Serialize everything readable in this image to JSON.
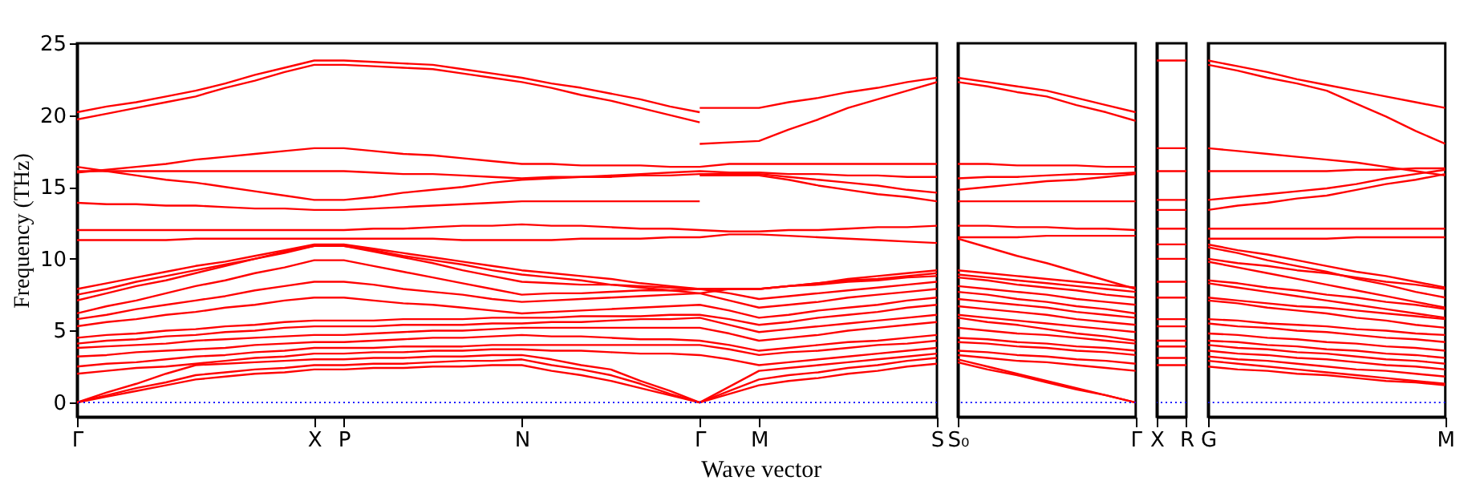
{
  "chart_data": [
    {
      "type": "line",
      "ylabel": "Frequency (THz)",
      "xlabel": "Wave vector",
      "ylim": [
        -1,
        25
      ],
      "yticks": [
        0,
        5,
        10,
        15,
        20,
        25
      ],
      "categories": [
        "Γ",
        null,
        null,
        null,
        null,
        null,
        null,
        null,
        "X",
        "P",
        null,
        null,
        null,
        null,
        null,
        "N",
        null,
        null,
        null,
        null,
        null,
        "Γ",
        null,
        "M",
        null,
        null,
        null,
        null,
        null,
        "S"
      ],
      "ref_lines": [
        {
          "axis": "y",
          "value": 0,
          "color": "#0000ff",
          "line_style": "dotted"
        }
      ],
      "series": [
        {
          "color": "#ff0000",
          "values": [
            20.2,
            20.6,
            20.9,
            21.3,
            21.7,
            22.2,
            22.8,
            23.3,
            23.8,
            23.8,
            23.7,
            23.6,
            23.5,
            23.2,
            22.9,
            22.6,
            22.2,
            21.9,
            21.5,
            21.1,
            20.6,
            20.2,
            null,
            null,
            null,
            null,
            null,
            null,
            null,
            null
          ]
        },
        {
          "color": "#ff0000",
          "values": [
            19.7,
            20.1,
            20.5,
            20.9,
            21.3,
            21.9,
            22.4,
            23.0,
            23.5,
            23.5,
            23.4,
            23.3,
            23.2,
            22.9,
            22.6,
            22.3,
            21.9,
            21.4,
            21.0,
            20.5,
            20.0,
            19.5,
            null,
            null,
            null,
            null,
            null,
            null,
            null,
            null
          ]
        },
        {
          "color": "#ff0000",
          "values": [
            null,
            null,
            null,
            null,
            null,
            null,
            null,
            null,
            null,
            null,
            null,
            null,
            null,
            null,
            null,
            null,
            null,
            null,
            null,
            null,
            null,
            20.5,
            20.5,
            20.5,
            20.9,
            21.2,
            21.6,
            21.9,
            22.3,
            22.6
          ]
        },
        {
          "color": "#ff0000",
          "values": [
            null,
            null,
            null,
            null,
            null,
            null,
            null,
            null,
            null,
            null,
            null,
            null,
            null,
            null,
            null,
            null,
            null,
            null,
            null,
            null,
            null,
            18.0,
            18.1,
            18.2,
            19.0,
            19.7,
            20.5,
            21.1,
            21.7,
            22.3
          ]
        },
        {
          "color": "#ff0000",
          "values": [
            16.0,
            16.2,
            16.4,
            16.6,
            16.9,
            17.1,
            17.3,
            17.5,
            17.7,
            17.7,
            17.5,
            17.3,
            17.2,
            17.0,
            16.8,
            16.6,
            16.6,
            16.5,
            16.5,
            16.5,
            16.4,
            16.4,
            16.6,
            16.6,
            16.6,
            16.6,
            16.6,
            16.6,
            16.6,
            16.6
          ]
        },
        {
          "color": "#ff0000",
          "values": [
            16.4,
            16.1,
            15.8,
            15.5,
            15.3,
            15.0,
            14.7,
            14.4,
            14.1,
            14.1,
            14.3,
            14.6,
            14.8,
            15.0,
            15.3,
            15.5,
            15.6,
            15.7,
            15.8,
            15.9,
            16.0,
            16.1,
            16.0,
            16.0,
            15.9,
            15.9,
            15.8,
            15.8,
            15.7,
            15.7
          ]
        },
        {
          "color": "#ff0000",
          "values": [
            16.1,
            16.1,
            16.1,
            16.1,
            16.1,
            16.1,
            16.1,
            16.1,
            16.1,
            16.1,
            16.0,
            15.9,
            15.9,
            15.8,
            15.7,
            15.6,
            15.7,
            15.7,
            15.7,
            15.8,
            15.8,
            15.9,
            15.9,
            15.9,
            15.7,
            15.5,
            15.3,
            15.1,
            14.8,
            14.6
          ]
        },
        {
          "color": "#ff0000",
          "values": [
            null,
            null,
            null,
            null,
            null,
            null,
            null,
            null,
            null,
            null,
            null,
            null,
            null,
            null,
            null,
            null,
            null,
            null,
            null,
            null,
            null,
            15.8,
            15.8,
            15.8,
            15.5,
            15.1,
            14.8,
            14.5,
            14.3,
            14.0
          ]
        },
        {
          "color": "#ff0000",
          "values": [
            13.9,
            13.8,
            13.8,
            13.7,
            13.7,
            13.6,
            13.5,
            13.5,
            13.4,
            13.4,
            13.5,
            13.6,
            13.7,
            13.8,
            13.9,
            14.0,
            14.0,
            14.0,
            14.0,
            14.0,
            14.0,
            14.0,
            null,
            null,
            null,
            null,
            null,
            null,
            null,
            null
          ]
        },
        {
          "color": "#ff0000",
          "values": [
            12.0,
            12.0,
            12.0,
            12.0,
            12.0,
            12.0,
            12.0,
            12.0,
            12.0,
            12.0,
            12.1,
            12.1,
            12.2,
            12.3,
            12.3,
            12.4,
            12.3,
            12.3,
            12.2,
            12.1,
            12.1,
            12.0,
            11.9,
            11.9,
            12.0,
            12.0,
            12.1,
            12.2,
            12.2,
            12.3
          ]
        },
        {
          "color": "#ff0000",
          "values": [
            11.3,
            11.3,
            11.3,
            11.3,
            11.4,
            11.4,
            11.4,
            11.4,
            11.4,
            11.4,
            11.4,
            11.4,
            11.4,
            11.3,
            11.3,
            11.3,
            11.3,
            11.4,
            11.4,
            11.4,
            11.5,
            11.5,
            11.7,
            11.7,
            11.6,
            11.5,
            11.4,
            11.3,
            11.2,
            11.1
          ]
        },
        {
          "color": "#ff0000",
          "values": [
            0,
            0.4,
            0.8,
            1.2,
            1.6,
            1.8,
            2.0,
            2.1,
            2.3,
            2.3,
            2.4,
            2.4,
            2.5,
            2.5,
            2.6,
            2.6,
            2.2,
            1.9,
            1.5,
            1.0,
            0.5,
            0,
            0.6,
            1.2,
            1.5,
            1.7,
            2.0,
            2.2,
            2.5,
            2.7
          ]
        },
        {
          "color": "#ff0000",
          "values": [
            0,
            0.5,
            1.0,
            1.4,
            1.9,
            2.1,
            2.3,
            2.4,
            2.6,
            2.6,
            2.7,
            2.7,
            2.8,
            2.9,
            2.9,
            3.0,
            2.6,
            2.3,
            1.9,
            1.3,
            0.6,
            0,
            0.8,
            1.6,
            1.9,
            2.1,
            2.4,
            2.6,
            2.9,
            3.1
          ]
        },
        {
          "color": "#ff0000",
          "values": [
            0,
            0.7,
            1.3,
            2.0,
            2.6,
            2.7,
            2.8,
            2.9,
            3.0,
            3.0,
            3.1,
            3.1,
            3.2,
            3.2,
            3.3,
            3.3,
            3.0,
            2.6,
            2.3,
            1.5,
            0.8,
            0,
            1.1,
            2.2,
            2.4,
            2.6,
            2.8,
            3.0,
            3.2,
            3.4
          ]
        },
        {
          "color": "#ff0000",
          "values": [
            2.0,
            2.2,
            2.4,
            2.5,
            2.7,
            2.9,
            3.1,
            3.2,
            3.4,
            3.4,
            3.5,
            3.5,
            3.6,
            3.6,
            3.7,
            3.7,
            3.6,
            3.6,
            3.5,
            3.4,
            3.4,
            3.3,
            3.0,
            2.6,
            2.8,
            3.0,
            3.2,
            3.4,
            3.6,
            3.8
          ]
        },
        {
          "color": "#ff0000",
          "values": [
            2.5,
            2.7,
            2.8,
            3.0,
            3.2,
            3.3,
            3.5,
            3.6,
            3.8,
            3.8,
            3.8,
            3.9,
            3.9,
            3.9,
            4.0,
            4.0,
            4.0,
            4.0,
            4.0,
            4.0,
            4.0,
            4.0,
            3.7,
            3.3,
            3.5,
            3.6,
            3.8,
            4.0,
            4.1,
            4.3
          ]
        },
        {
          "color": "#ff0000",
          "values": [
            3.2,
            3.3,
            3.5,
            3.6,
            3.7,
            3.8,
            4.0,
            4.1,
            4.2,
            4.2,
            4.3,
            4.4,
            4.5,
            4.5,
            4.6,
            4.7,
            4.6,
            4.6,
            4.5,
            4.4,
            4.4,
            4.3,
            4.0,
            3.6,
            3.8,
            4.0,
            4.2,
            4.3,
            4.5,
            4.7
          ]
        },
        {
          "color": "#ff0000",
          "values": [
            3.8,
            3.9,
            4.0,
            4.1,
            4.3,
            4.4,
            4.5,
            4.6,
            4.7,
            4.7,
            4.8,
            4.9,
            5.0,
            5.0,
            5.1,
            5.2,
            5.2,
            5.2,
            5.2,
            5.2,
            5.2,
            5.2,
            4.8,
            4.3,
            4.5,
            4.7,
            5.0,
            5.2,
            5.4,
            5.6
          ]
        },
        {
          "color": "#ff0000",
          "values": [
            4.1,
            4.3,
            4.4,
            4.6,
            4.7,
            4.9,
            5.0,
            5.2,
            5.3,
            5.3,
            5.3,
            5.4,
            5.4,
            5.4,
            5.5,
            5.5,
            5.6,
            5.6,
            5.7,
            5.8,
            5.8,
            5.9,
            5.4,
            4.9,
            5.1,
            5.3,
            5.5,
            5.7,
            5.9,
            6.1
          ]
        },
        {
          "color": "#ff0000",
          "values": [
            4.5,
            4.7,
            4.8,
            5.0,
            5.1,
            5.3,
            5.4,
            5.6,
            5.7,
            5.7,
            5.7,
            5.8,
            5.8,
            5.8,
            5.9,
            5.9,
            5.9,
            6.0,
            6.0,
            6.0,
            6.1,
            6.1,
            5.8,
            5.4,
            5.6,
            5.9,
            6.1,
            6.3,
            6.6,
            6.8
          ]
        },
        {
          "color": "#ff0000",
          "values": [
            5.3,
            5.6,
            5.8,
            6.1,
            6.3,
            6.6,
            6.8,
            7.1,
            7.3,
            7.3,
            7.1,
            6.9,
            6.8,
            6.6,
            6.4,
            6.2,
            6.3,
            6.4,
            6.5,
            6.6,
            6.7,
            6.8,
            6.4,
            5.9,
            6.1,
            6.4,
            6.6,
            6.8,
            7.1,
            7.3
          ]
        },
        {
          "color": "#ff0000",
          "values": [
            5.8,
            6.1,
            6.5,
            6.8,
            7.1,
            7.4,
            7.8,
            8.1,
            8.4,
            8.4,
            8.2,
            7.9,
            7.7,
            7.5,
            7.2,
            7.0,
            7.1,
            7.2,
            7.3,
            7.4,
            7.5,
            7.6,
            7.1,
            6.6,
            6.8,
            7.0,
            7.3,
            7.5,
            7.7,
            7.9
          ]
        },
        {
          "color": "#ff0000",
          "values": [
            6.2,
            6.7,
            7.1,
            7.6,
            8.1,
            8.5,
            9.0,
            9.4,
            9.9,
            9.9,
            9.5,
            9.1,
            8.7,
            8.3,
            7.9,
            7.5,
            7.6,
            7.6,
            7.7,
            7.8,
            7.8,
            7.9,
            7.6,
            7.2,
            7.4,
            7.6,
            7.8,
            8.0,
            8.2,
            8.4
          ]
        },
        {
          "color": "#ff0000",
          "values": [
            7.1,
            7.6,
            8.1,
            8.5,
            9.0,
            9.5,
            10.0,
            10.4,
            10.9,
            10.9,
            10.5,
            10.1,
            9.7,
            9.2,
            8.8,
            8.4,
            8.3,
            8.2,
            8.2,
            8.1,
            8.0,
            7.9,
            7.9,
            7.9,
            8.1,
            8.2,
            8.4,
            8.5,
            8.7,
            8.8
          ]
        },
        {
          "color": "#ff0000",
          "values": [
            7.5,
            7.9,
            8.4,
            8.8,
            9.2,
            9.6,
            10.0,
            10.5,
            10.9,
            10.9,
            10.6,
            10.2,
            9.9,
            9.6,
            9.2,
            8.9,
            8.7,
            8.5,
            8.2,
            8.0,
            7.8,
            7.6,
            7.9,
            7.9,
            8.1,
            8.3,
            8.5,
            8.6,
            8.8,
            9.0
          ]
        },
        {
          "color": "#ff0000",
          "values": [
            7.9,
            8.3,
            8.7,
            9.1,
            9.5,
            9.8,
            10.2,
            10.6,
            11.0,
            11.0,
            10.7,
            10.4,
            10.1,
            9.8,
            9.5,
            9.2,
            9.0,
            8.8,
            8.6,
            8.3,
            8.1,
            7.9,
            7.9,
            7.9,
            8.1,
            8.3,
            8.6,
            8.8,
            9.0,
            9.2
          ]
        }
      ]
    },
    {
      "type": "line",
      "tick_labels": "x",
      "ylim": [
        -1,
        25
      ],
      "yticks": [
        0,
        5,
        10,
        15,
        20,
        25
      ],
      "categories": [
        "S₀",
        null,
        null,
        null,
        null,
        null,
        "Γ"
      ],
      "ref_lines": [
        {
          "axis": "y",
          "value": 0,
          "color": "#0000ff",
          "line_style": "dotted"
        }
      ],
      "series": [
        {
          "color": "#ff0000",
          "values": [
            22.6,
            22.3,
            22.0,
            21.7,
            21.2,
            20.7,
            20.2
          ]
        },
        {
          "color": "#ff0000",
          "values": [
            22.3,
            22.0,
            21.6,
            21.3,
            20.7,
            20.2,
            19.6
          ]
        },
        {
          "color": "#ff0000",
          "values": [
            16.6,
            16.6,
            16.5,
            16.5,
            16.5,
            16.4,
            16.4
          ]
        },
        {
          "color": "#ff0000",
          "values": [
            15.6,
            15.7,
            15.7,
            15.8,
            15.9,
            15.9,
            16.0
          ]
        },
        {
          "color": "#ff0000",
          "values": [
            14.8,
            15.0,
            15.2,
            15.4,
            15.5,
            15.7,
            15.9
          ]
        },
        {
          "color": "#ff0000",
          "values": [
            14.0,
            14.0,
            14.0,
            14.0,
            14.0,
            14.0,
            14.0
          ]
        },
        {
          "color": "#ff0000",
          "values": [
            12.3,
            12.3,
            12.2,
            12.2,
            12.1,
            12.1,
            12.0
          ]
        },
        {
          "color": "#ff0000",
          "values": [
            11.5,
            11.5,
            11.5,
            11.6,
            11.6,
            11.6,
            11.6
          ]
        },
        {
          "color": "#ff0000",
          "values": [
            2.8,
            2.3,
            1.9,
            1.4,
            0.9,
            0.5,
            0
          ]
        },
        {
          "color": "#ff0000",
          "values": [
            3.0,
            2.5,
            2.0,
            1.5,
            1.0,
            0.5,
            0
          ]
        },
        {
          "color": "#ff0000",
          "values": [
            3.3,
            3.1,
            2.9,
            2.8,
            2.6,
            2.4,
            2.2
          ]
        },
        {
          "color": "#ff0000",
          "values": [
            3.6,
            3.5,
            3.3,
            3.2,
            3.0,
            2.9,
            2.7
          ]
        },
        {
          "color": "#ff0000",
          "values": [
            4.2,
            4.1,
            3.9,
            3.8,
            3.6,
            3.5,
            3.3
          ]
        },
        {
          "color": "#ff0000",
          "values": [
            4.5,
            4.4,
            4.2,
            4.1,
            3.9,
            3.8,
            3.6
          ]
        },
        {
          "color": "#ff0000",
          "values": [
            5.2,
            5.0,
            4.8,
            4.7,
            4.5,
            4.3,
            4.1
          ]
        },
        {
          "color": "#ff0000",
          "values": [
            5.9,
            5.6,
            5.4,
            5.1,
            4.8,
            4.6,
            4.3
          ]
        },
        {
          "color": "#ff0000",
          "values": [
            6.1,
            5.9,
            5.7,
            5.5,
            5.3,
            5.1,
            4.9
          ]
        },
        {
          "color": "#ff0000",
          "values": [
            6.7,
            6.5,
            6.3,
            6.1,
            5.8,
            5.6,
            5.4
          ]
        },
        {
          "color": "#ff0000",
          "values": [
            7.2,
            7.0,
            6.8,
            6.6,
            6.3,
            6.1,
            5.9
          ]
        },
        {
          "color": "#ff0000",
          "values": [
            7.7,
            7.5,
            7.2,
            7.0,
            6.7,
            6.5,
            6.2
          ]
        },
        {
          "color": "#ff0000",
          "values": [
            8.1,
            7.9,
            7.7,
            7.5,
            7.2,
            7.0,
            6.8
          ]
        },
        {
          "color": "#ff0000",
          "values": [
            8.7,
            8.5,
            8.2,
            8.0,
            7.8,
            7.5,
            7.3
          ]
        },
        {
          "color": "#ff0000",
          "values": [
            8.9,
            8.7,
            8.5,
            8.3,
            8.1,
            7.9,
            7.7
          ]
        },
        {
          "color": "#ff0000",
          "values": [
            9.2,
            9.0,
            8.8,
            8.6,
            8.4,
            8.2,
            8.0
          ]
        },
        {
          "color": "#ff0000",
          "values": [
            11.4,
            10.8,
            10.2,
            9.7,
            9.1,
            8.5,
            7.9
          ]
        }
      ]
    },
    {
      "type": "line",
      "tick_labels": "x",
      "ylim": [
        -1,
        25
      ],
      "yticks": [
        0,
        5,
        10,
        15,
        20,
        25
      ],
      "categories": [
        "X",
        "R"
      ],
      "ref_lines": [
        {
          "axis": "y",
          "value": 0,
          "color": "#0000ff",
          "line_style": "dotted"
        }
      ],
      "series": [
        {
          "color": "#ff0000",
          "values": [
            23.8,
            23.8
          ]
        },
        {
          "color": "#ff0000",
          "values": [
            17.7,
            17.7
          ]
        },
        {
          "color": "#ff0000",
          "values": [
            16.1,
            16.1
          ]
        },
        {
          "color": "#ff0000",
          "values": [
            14.1,
            14.1
          ]
        },
        {
          "color": "#ff0000",
          "values": [
            13.4,
            13.4
          ]
        },
        {
          "color": "#ff0000",
          "values": [
            12.1,
            12.1
          ]
        },
        {
          "color": "#ff0000",
          "values": [
            11.0,
            11.0
          ]
        },
        {
          "color": "#ff0000",
          "values": [
            10.0,
            10.0
          ]
        },
        {
          "color": "#ff0000",
          "values": [
            8.4,
            8.4
          ]
        },
        {
          "color": "#ff0000",
          "values": [
            7.3,
            7.3
          ]
        },
        {
          "color": "#ff0000",
          "values": [
            5.8,
            5.8
          ]
        },
        {
          "color": "#ff0000",
          "values": [
            5.3,
            5.3
          ]
        },
        {
          "color": "#ff0000",
          "values": [
            4.3,
            4.3
          ]
        },
        {
          "color": "#ff0000",
          "values": [
            3.9,
            3.9
          ]
        },
        {
          "color": "#ff0000",
          "values": [
            3.1,
            3.1
          ]
        },
        {
          "color": "#ff0000",
          "values": [
            2.6,
            2.6
          ]
        }
      ]
    },
    {
      "type": "line",
      "tick_labels": "x",
      "ylim": [
        -1,
        25
      ],
      "yticks": [
        0,
        5,
        10,
        15,
        20,
        25
      ],
      "categories": [
        "G",
        null,
        null,
        null,
        null,
        null,
        null,
        null,
        "M"
      ],
      "ref_lines": [
        {
          "axis": "y",
          "value": 0,
          "color": "#0000ff",
          "line_style": "dotted"
        }
      ],
      "series": [
        {
          "color": "#ff0000",
          "values": [
            23.8,
            23.4,
            23.0,
            22.5,
            22.1,
            21.7,
            21.3,
            20.9,
            20.5
          ]
        },
        {
          "color": "#ff0000",
          "values": [
            23.5,
            23.1,
            22.6,
            22.2,
            21.7,
            20.8,
            19.9,
            18.9,
            18.0
          ]
        },
        {
          "color": "#ff0000",
          "values": [
            17.7,
            17.5,
            17.3,
            17.1,
            16.9,
            16.7,
            16.4,
            16.1,
            15.8
          ]
        },
        {
          "color": "#ff0000",
          "values": [
            16.1,
            16.1,
            16.1,
            16.1,
            16.1,
            16.2,
            16.2,
            16.3,
            16.3
          ]
        },
        {
          "color": "#ff0000",
          "values": [
            14.1,
            14.3,
            14.5,
            14.7,
            14.9,
            15.2,
            15.6,
            15.9,
            16.2
          ]
        },
        {
          "color": "#ff0000",
          "values": [
            13.4,
            13.7,
            13.9,
            14.2,
            14.4,
            14.8,
            15.2,
            15.5,
            15.9
          ]
        },
        {
          "color": "#ff0000",
          "values": [
            12.1,
            12.1,
            12.1,
            12.1,
            12.1,
            12.1,
            12.1,
            12.1,
            12.1
          ]
        },
        {
          "color": "#ff0000",
          "values": [
            11.4,
            11.4,
            11.4,
            11.4,
            11.4,
            11.5,
            11.5,
            11.5,
            11.5
          ]
        },
        {
          "color": "#ff0000",
          "values": [
            2.5,
            2.3,
            2.2,
            2.0,
            1.9,
            1.7,
            1.5,
            1.4,
            1.2
          ]
        },
        {
          "color": "#ff0000",
          "values": [
            2.9,
            2.7,
            2.5,
            2.3,
            2.1,
            1.9,
            1.7,
            1.5,
            1.3
          ]
        },
        {
          "color": "#ff0000",
          "values": [
            3.2,
            3.0,
            2.9,
            2.7,
            2.5,
            2.3,
            2.2,
            2.0,
            1.8
          ]
        },
        {
          "color": "#ff0000",
          "values": [
            3.6,
            3.4,
            3.3,
            3.1,
            3.0,
            2.8,
            2.6,
            2.5,
            2.3
          ]
        },
        {
          "color": "#ff0000",
          "values": [
            4.0,
            3.8,
            3.7,
            3.5,
            3.4,
            3.2,
            3.0,
            2.9,
            2.7
          ]
        },
        {
          "color": "#ff0000",
          "values": [
            4.3,
            4.2,
            4.0,
            3.9,
            3.7,
            3.6,
            3.4,
            3.3,
            3.1
          ]
        },
        {
          "color": "#ff0000",
          "values": [
            4.8,
            4.7,
            4.5,
            4.4,
            4.2,
            4.1,
            3.9,
            3.8,
            3.6
          ]
        },
        {
          "color": "#ff0000",
          "values": [
            5.5,
            5.3,
            5.2,
            5.0,
            4.9,
            4.7,
            4.5,
            4.4,
            4.2
          ]
        },
        {
          "color": "#ff0000",
          "values": [
            5.8,
            5.7,
            5.5,
            5.4,
            5.3,
            5.1,
            5.0,
            4.8,
            4.7
          ]
        },
        {
          "color": "#ff0000",
          "values": [
            7.1,
            6.9,
            6.6,
            6.4,
            6.2,
            5.9,
            5.7,
            5.4,
            5.2
          ]
        },
        {
          "color": "#ff0000",
          "values": [
            7.3,
            7.1,
            6.9,
            6.7,
            6.6,
            6.4,
            6.2,
            6.0,
            5.8
          ]
        },
        {
          "color": "#ff0000",
          "values": [
            8.3,
            8.0,
            7.7,
            7.4,
            7.1,
            6.8,
            6.5,
            6.2,
            5.9
          ]
        },
        {
          "color": "#ff0000",
          "values": [
            8.5,
            8.3,
            8.0,
            7.8,
            7.5,
            7.3,
            7.0,
            6.8,
            6.5
          ]
        },
        {
          "color": "#ff0000",
          "values": [
            9.8,
            9.4,
            9.0,
            8.6,
            8.2,
            7.8,
            7.4,
            7.0,
            6.6
          ]
        },
        {
          "color": "#ff0000",
          "values": [
            10.0,
            9.7,
            9.5,
            9.2,
            9.0,
            8.7,
            8.4,
            8.2,
            7.9
          ]
        },
        {
          "color": "#ff0000",
          "values": [
            10.8,
            10.4,
            9.9,
            9.5,
            9.1,
            8.6,
            8.2,
            7.7,
            7.3
          ]
        },
        {
          "color": "#ff0000",
          "values": [
            11.0,
            10.6,
            10.3,
            9.9,
            9.5,
            9.1,
            8.8,
            8.4,
            8.0
          ]
        }
      ]
    }
  ]
}
